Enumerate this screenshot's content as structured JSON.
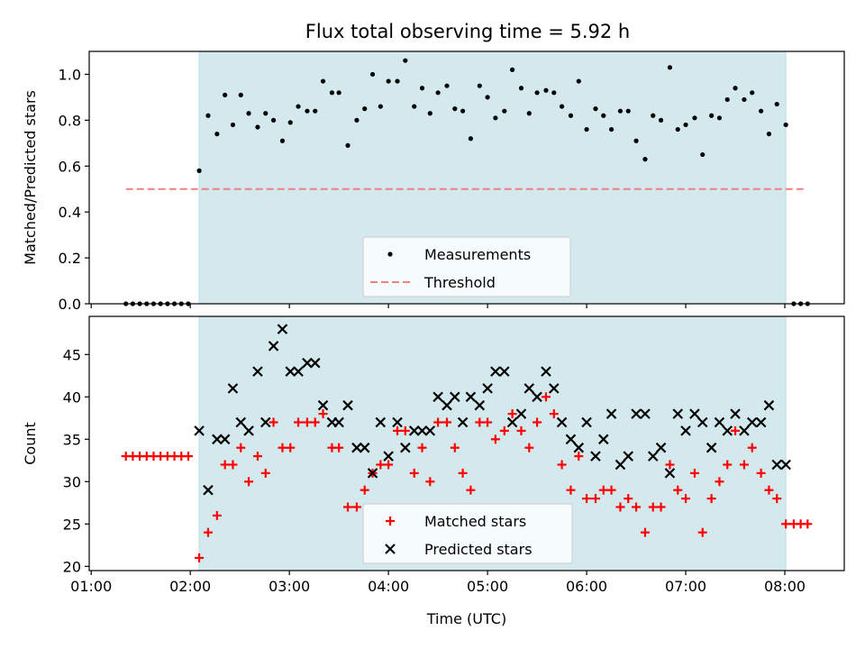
{
  "title": "Flux total observing time = 5.92 h",
  "colors": {
    "observing_window": "#d3e9ee",
    "threshold": "#f08080",
    "measurements": "#000000",
    "matched": "#ff0000",
    "predicted": "#000000"
  },
  "chart_data": [
    {
      "type": "scatter",
      "ylabel": "Matched/Predicted stars",
      "xlabel": "",
      "ylim": [
        0,
        1.1
      ],
      "yticks": [
        "0.0",
        "0.2",
        "0.4",
        "0.6",
        "0.8",
        "1.0"
      ],
      "xlim": [
        0.98,
        8.6
      ],
      "shaded_interval": [
        2.09,
        8.01
      ],
      "legend": {
        "placement": "lower-center",
        "entries": [
          "Measurements",
          "Threshold"
        ]
      },
      "threshold": {
        "name": "Threshold",
        "y": 0.5,
        "x": [
          1.35,
          8.22
        ],
        "style": "dashed"
      },
      "series": [
        {
          "name": "Measurements",
          "marker": "dot",
          "x": [
            1.35,
            1.42,
            1.49,
            1.56,
            1.63,
            1.7,
            1.77,
            1.84,
            1.91,
            1.98,
            2.09,
            2.18,
            2.27,
            2.35,
            2.43,
            2.51,
            2.59,
            2.68,
            2.76,
            2.84,
            2.93,
            3.01,
            3.09,
            3.18,
            3.26,
            3.34,
            3.43,
            3.5,
            3.59,
            3.68,
            3.76,
            3.84,
            3.92,
            4.0,
            4.09,
            4.17,
            4.26,
            4.34,
            4.42,
            4.5,
            4.59,
            4.67,
            4.75,
            4.83,
            4.92,
            5.0,
            5.08,
            5.17,
            5.25,
            5.34,
            5.42,
            5.5,
            5.59,
            5.67,
            5.75,
            5.84,
            5.92,
            6.0,
            6.09,
            6.17,
            6.25,
            6.34,
            6.42,
            6.5,
            6.59,
            6.67,
            6.75,
            6.84,
            6.92,
            7.0,
            7.09,
            7.17,
            7.26,
            7.34,
            7.42,
            7.5,
            7.59,
            7.67,
            7.76,
            7.84,
            7.92,
            8.01,
            8.09,
            8.16,
            8.23
          ],
          "y": [
            0,
            0,
            0,
            0,
            0,
            0,
            0,
            0,
            0,
            0,
            0.58,
            0.82,
            0.74,
            0.91,
            0.78,
            0.91,
            0.83,
            0.77,
            0.83,
            0.8,
            0.71,
            0.79,
            0.86,
            0.84,
            0.84,
            0.97,
            0.92,
            0.92,
            0.69,
            0.8,
            0.85,
            1.0,
            0.86,
            0.97,
            0.97,
            1.06,
            0.86,
            0.94,
            0.83,
            0.92,
            0.95,
            0.85,
            0.84,
            0.72,
            0.95,
            0.9,
            0.81,
            0.84,
            1.02,
            0.94,
            0.83,
            0.92,
            0.93,
            0.92,
            0.86,
            0.82,
            0.97,
            0.76,
            0.85,
            0.82,
            0.76,
            0.84,
            0.84,
            0.71,
            0.63,
            0.82,
            0.8,
            1.03,
            0.76,
            0.78,
            0.81,
            0.65,
            0.82,
            0.81,
            0.89,
            0.94,
            0.89,
            0.92,
            0.84,
            0.74,
            0.87,
            0.78,
            0,
            0,
            0
          ]
        }
      ]
    },
    {
      "type": "scatter",
      "ylabel": "Count",
      "xlabel": "Time (UTC)",
      "ylim": [
        19.5,
        49.5
      ],
      "yticks": [
        "20",
        "25",
        "30",
        "35",
        "40",
        "45"
      ],
      "xlim": [
        0.98,
        8.6
      ],
      "xticks": [
        "01:00",
        "02:00",
        "03:00",
        "04:00",
        "05:00",
        "06:00",
        "07:00",
        "08:00"
      ],
      "shaded_interval": [
        2.09,
        8.01
      ],
      "legend": {
        "placement": "lower-center",
        "entries": [
          "Matched stars",
          "Predicted stars"
        ]
      },
      "series": [
        {
          "name": "Matched stars",
          "marker": "plus",
          "x": [
            1.35,
            1.42,
            1.49,
            1.56,
            1.63,
            1.7,
            1.77,
            1.84,
            1.91,
            1.98,
            2.09,
            2.18,
            2.27,
            2.35,
            2.43,
            2.51,
            2.59,
            2.68,
            2.76,
            2.84,
            2.93,
            3.01,
            3.09,
            3.18,
            3.26,
            3.34,
            3.43,
            3.5,
            3.59,
            3.68,
            3.76,
            3.84,
            3.92,
            4.0,
            4.09,
            4.17,
            4.26,
            4.34,
            4.42,
            4.5,
            4.59,
            4.67,
            4.75,
            4.83,
            4.92,
            5.0,
            5.08,
            5.17,
            5.25,
            5.34,
            5.42,
            5.5,
            5.59,
            5.67,
            5.75,
            5.84,
            5.92,
            6.0,
            6.09,
            6.17,
            6.25,
            6.34,
            6.42,
            6.5,
            6.59,
            6.67,
            6.75,
            6.84,
            6.92,
            7.0,
            7.09,
            7.17,
            7.26,
            7.34,
            7.42,
            7.5,
            7.59,
            7.67,
            7.76,
            7.84,
            7.92,
            8.01,
            8.09,
            8.16,
            8.23
          ],
          "y": [
            33,
            33,
            33,
            33,
            33,
            33,
            33,
            33,
            33,
            33,
            21,
            24,
            26,
            32,
            32,
            34,
            30,
            33,
            31,
            37,
            34,
            34,
            37,
            37,
            37,
            38,
            34,
            34,
            27,
            27,
            29,
            31,
            32,
            32,
            36,
            36,
            31,
            34,
            30,
            37,
            37,
            34,
            31,
            29,
            37,
            37,
            35,
            36,
            38,
            36,
            34,
            37,
            40,
            38,
            32,
            29,
            33,
            28,
            28,
            29,
            29,
            27,
            28,
            27,
            24,
            27,
            27,
            32,
            29,
            28,
            31,
            24,
            28,
            30,
            32,
            36,
            32,
            34,
            31,
            29,
            28,
            25,
            25,
            25,
            25
          ]
        },
        {
          "name": "Predicted stars",
          "marker": "x",
          "x": [
            2.09,
            2.18,
            2.27,
            2.35,
            2.43,
            2.51,
            2.59,
            2.68,
            2.76,
            2.84,
            2.93,
            3.01,
            3.09,
            3.18,
            3.26,
            3.34,
            3.43,
            3.5,
            3.59,
            3.68,
            3.76,
            3.84,
            3.92,
            4.0,
            4.09,
            4.17,
            4.26,
            4.34,
            4.42,
            4.5,
            4.59,
            4.67,
            4.75,
            4.83,
            4.92,
            5.0,
            5.08,
            5.17,
            5.25,
            5.34,
            5.42,
            5.5,
            5.59,
            5.67,
            5.75,
            5.84,
            5.92,
            6.0,
            6.09,
            6.17,
            6.25,
            6.34,
            6.42,
            6.5,
            6.59,
            6.67,
            6.75,
            6.84,
            6.92,
            7.0,
            7.09,
            7.17,
            7.26,
            7.34,
            7.42,
            7.5,
            7.59,
            7.67,
            7.76,
            7.84,
            7.92,
            8.01
          ],
          "y": [
            36,
            29,
            35,
            35,
            41,
            37,
            36,
            43,
            37,
            46,
            48,
            43,
            43,
            44,
            44,
            39,
            37,
            37,
            39,
            34,
            34,
            31,
            37,
            33,
            37,
            34,
            36,
            36,
            36,
            40,
            39,
            40,
            37,
            40,
            39,
            41,
            43,
            43,
            37,
            38,
            41,
            40,
            43,
            41,
            37,
            35,
            34,
            37,
            33,
            35,
            38,
            32,
            33,
            38,
            38,
            33,
            34,
            31,
            38,
            36,
            38,
            37,
            34,
            37,
            36,
            38,
            36,
            37,
            37,
            39,
            32,
            32
          ]
        }
      ]
    }
  ]
}
